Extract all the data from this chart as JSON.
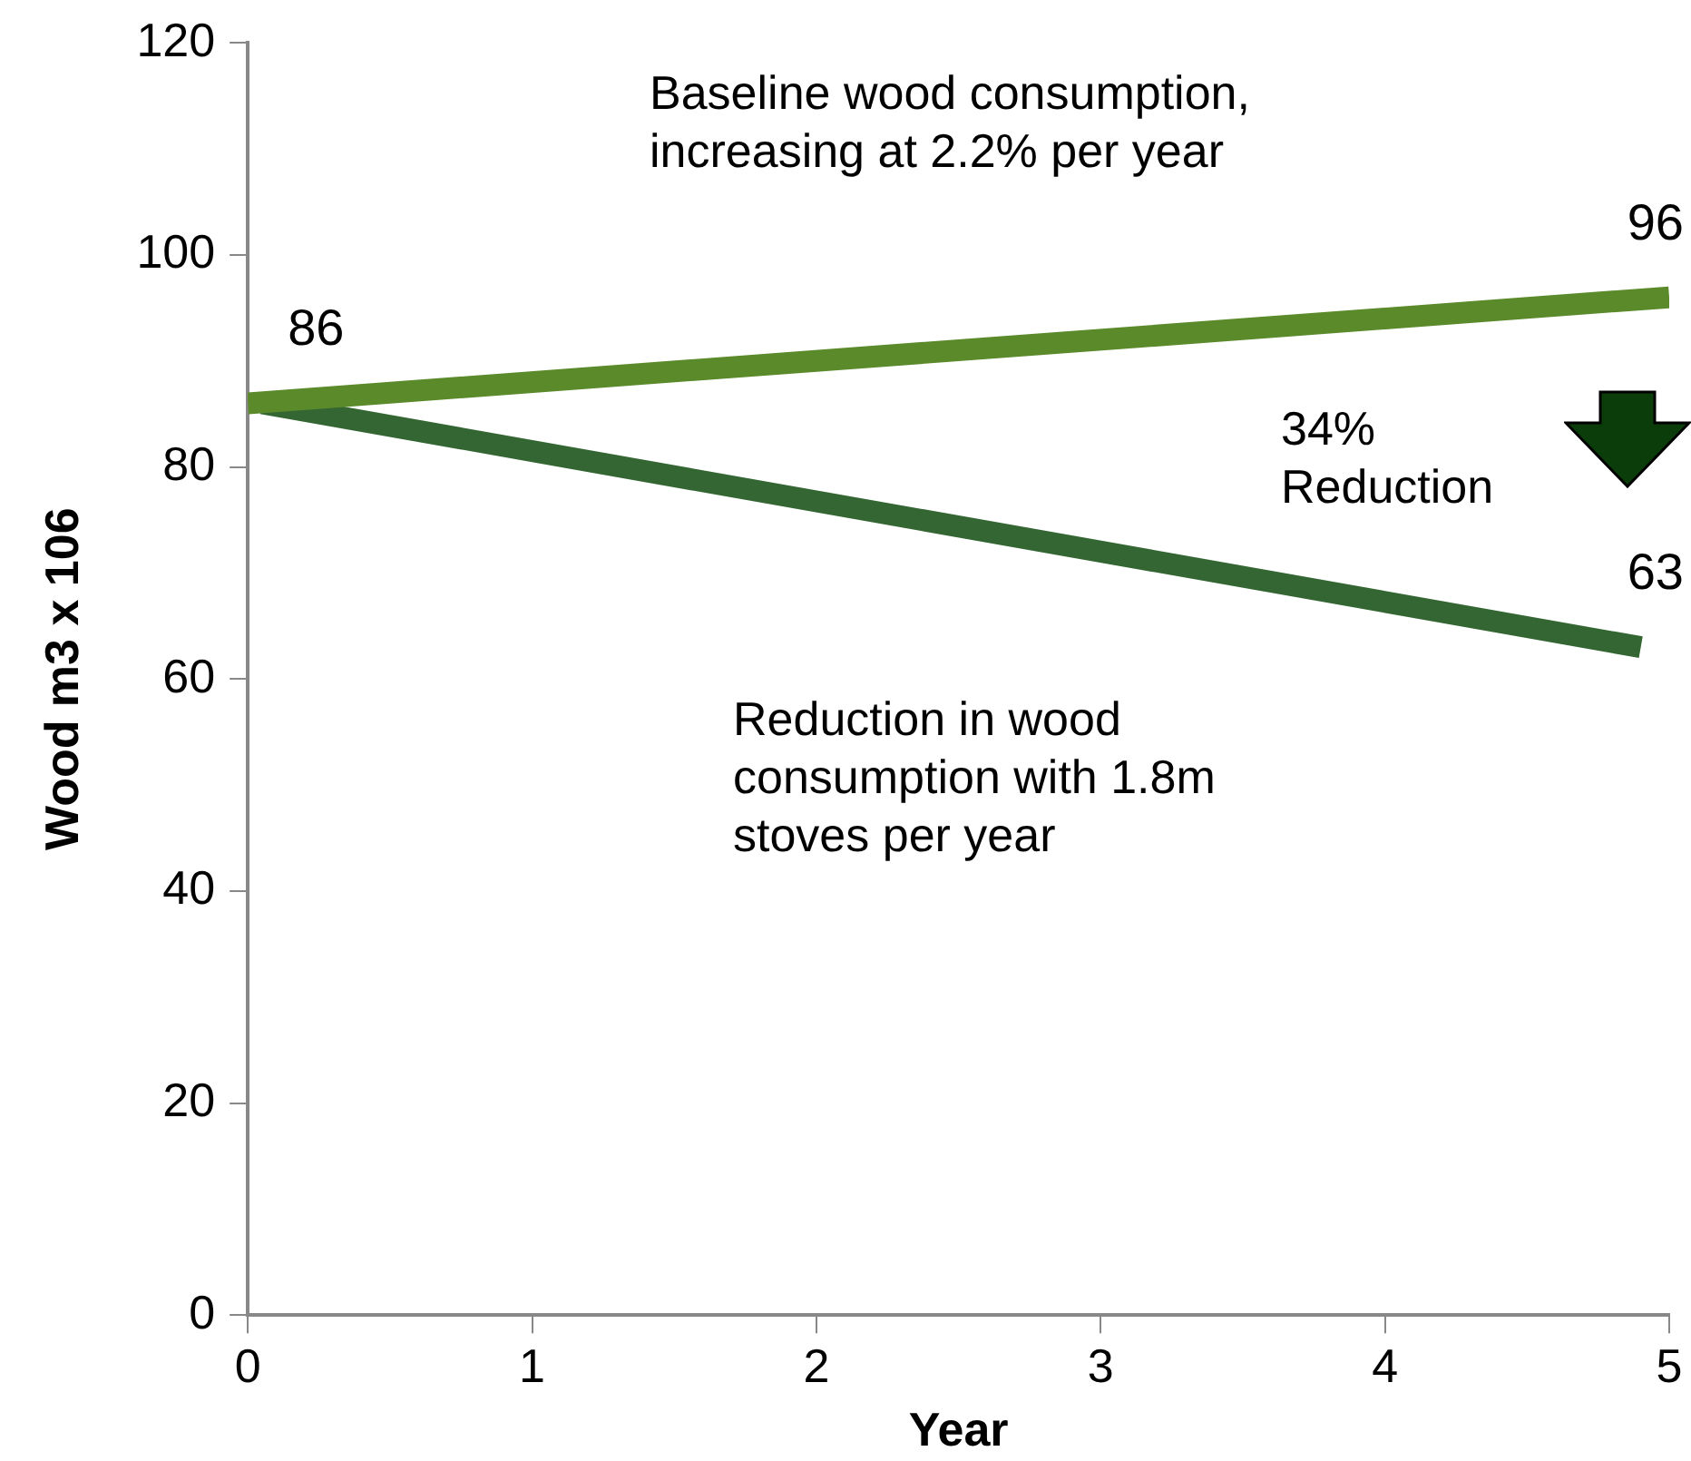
{
  "chart_data": {
    "type": "line",
    "xlabel": "Year",
    "ylabel": "Wood m3 x 106",
    "xlim": [
      0,
      5
    ],
    "xticks": [
      0,
      1,
      2,
      3,
      4,
      5
    ],
    "ylim": [
      0,
      120
    ],
    "yticks": [
      0,
      20,
      40,
      60,
      80,
      100,
      120
    ],
    "grid": false,
    "legend": false,
    "marker": "none",
    "line_style": "solid",
    "series": [
      {
        "color": "#5b8a2b",
        "x": [
          0,
          5
        ],
        "values": [
          86,
          96
        ],
        "value_labels": [
          "86",
          "96"
        ]
      },
      {
        "color": "#336633",
        "x": [
          0.05,
          4.9
        ],
        "values": [
          86,
          63
        ],
        "value_labels": [
          null,
          "63"
        ]
      }
    ],
    "annotations": [
      "Baseline wood consumption, increasing at 2.2% per year",
      "34% Reduction",
      "Reduction in wood consumption with 1.8m stoves per year"
    ]
  }
}
